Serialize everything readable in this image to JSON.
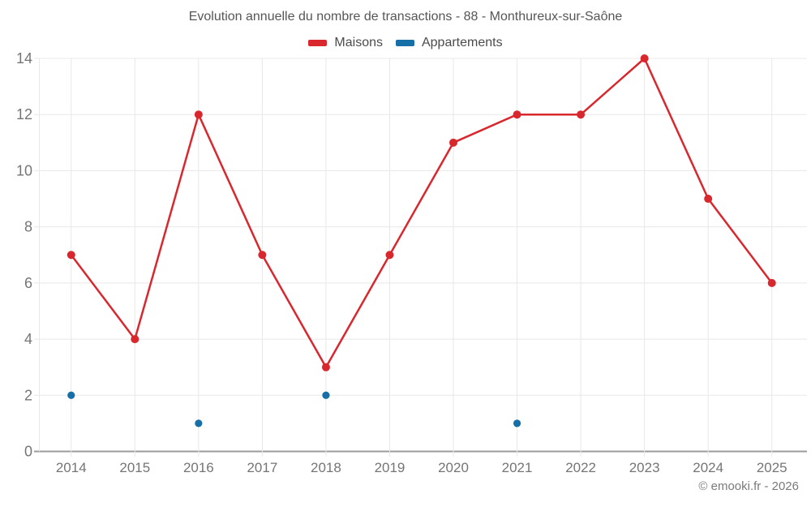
{
  "chart": {
    "title": "Evolution annuelle du nombre de transactions - 88 - Monthureux-sur-Saône"
  },
  "legend": {
    "items": [
      {
        "label": "Maisons",
        "color": "#d9272e"
      },
      {
        "label": "Appartements",
        "color": "#176fa7"
      }
    ]
  },
  "footer": {
    "credit": "© emooki.fr - 2026"
  },
  "chart_data": {
    "type": "line",
    "title": "Evolution annuelle du nombre de transactions - 88 - Monthureux-sur-Saône",
    "categories": [
      "2014",
      "2015",
      "2016",
      "2017",
      "2018",
      "2019",
      "2020",
      "2021",
      "2022",
      "2023",
      "2024",
      "2025"
    ],
    "series": [
      {
        "name": "Maisons",
        "type": "line",
        "color": "#d9272e",
        "values": [
          7,
          4,
          12,
          7,
          3,
          7,
          11,
          12,
          12,
          14,
          9,
          6
        ]
      },
      {
        "name": "Appartements",
        "type": "scatter",
        "color": "#176fa7",
        "values": [
          2,
          null,
          1,
          null,
          2,
          null,
          null,
          1,
          null,
          null,
          null,
          null
        ]
      }
    ],
    "xlabel": "",
    "ylabel": "",
    "ylim": [
      0,
      14
    ],
    "y_ticks": [
      0,
      2,
      4,
      6,
      8,
      10,
      12,
      14
    ],
    "grid": true,
    "legend_position": "top"
  }
}
